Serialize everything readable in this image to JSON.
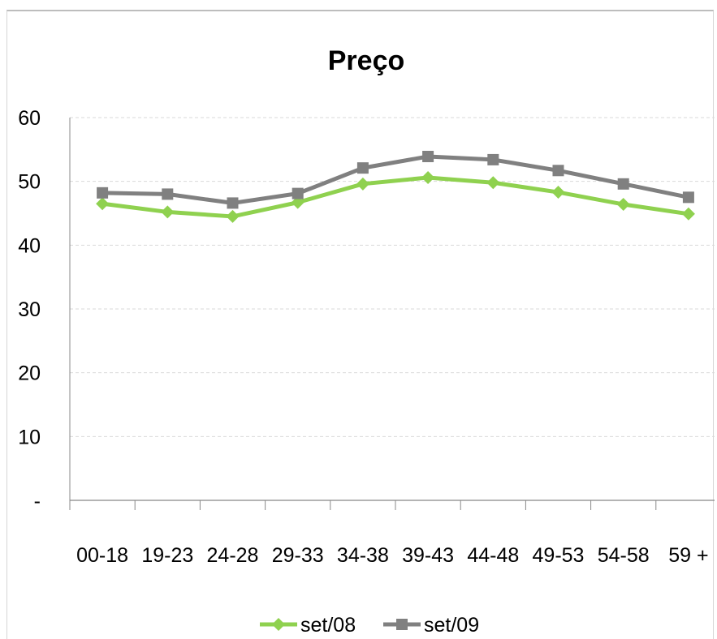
{
  "chart_data": {
    "type": "line",
    "title": "Preço",
    "xlabel": "",
    "ylabel": "",
    "categories": [
      "00-18",
      "19-23",
      "24-28",
      "29-33",
      "34-38",
      "39-43",
      "44-48",
      "49-53",
      "54-58",
      "59 +"
    ],
    "y_ticks": [
      "-",
      "10",
      "20",
      "30",
      "40",
      "50",
      "60"
    ],
    "ylim": [
      0,
      60
    ],
    "grid": true,
    "legend_position": "bottom",
    "series": [
      {
        "name": "set/08",
        "color": "#8fd14f",
        "marker": "diamond",
        "values": [
          46.5,
          45.2,
          44.5,
          46.7,
          49.6,
          50.6,
          49.8,
          48.3,
          46.4,
          44.9
        ]
      },
      {
        "name": "set/09",
        "color": "#808080",
        "marker": "square",
        "values": [
          48.2,
          48.0,
          46.6,
          48.1,
          52.1,
          53.9,
          53.4,
          51.7,
          49.6,
          47.5
        ]
      }
    ]
  }
}
